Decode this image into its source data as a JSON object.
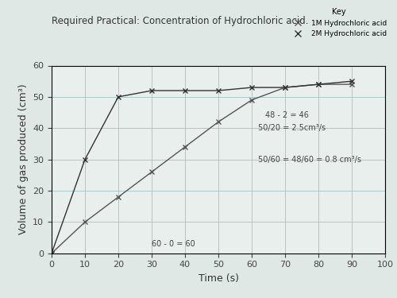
{
  "chart_data": {
    "type": "line",
    "title": "Required Practical: Concentration of Hydrochloric acid.",
    "x_label": "Time (s)",
    "y_label": "Volume of gas produced (cm³)",
    "legend_title": "Key",
    "x": [
      0,
      10,
      20,
      30,
      40,
      50,
      60,
      70,
      80,
      90
    ],
    "series": [
      {
        "name": "1M Hydrochloric acid",
        "color": "#555555",
        "marker": "x",
        "line_style": "solid",
        "values": [
          0,
          10,
          18,
          26,
          34,
          42,
          49,
          53,
          54,
          54
        ]
      },
      {
        "name": "2M Hydrochloric acid",
        "color": "#333333",
        "marker": "x",
        "line_style": "solid",
        "values": [
          0,
          30,
          50,
          52,
          52,
          52,
          53,
          53,
          54,
          55
        ]
      }
    ],
    "annotations": [
      "50/20 = 2.5cm³/s",
      "48 - 2 = 46",
      "50/60 = 48/60 = 0.8 cm³/s",
      "60 - 0 = 60"
    ],
    "xlim": [
      0,
      100
    ],
    "xticks": [
      0,
      10,
      20,
      30,
      40,
      50,
      60,
      70,
      80,
      90,
      100
    ],
    "ylim": [
      0,
      60
    ],
    "yticks": [
      0,
      10,
      20,
      30,
      40,
      50,
      60
    ],
    "grid": true,
    "legend": "upper right"
  }
}
